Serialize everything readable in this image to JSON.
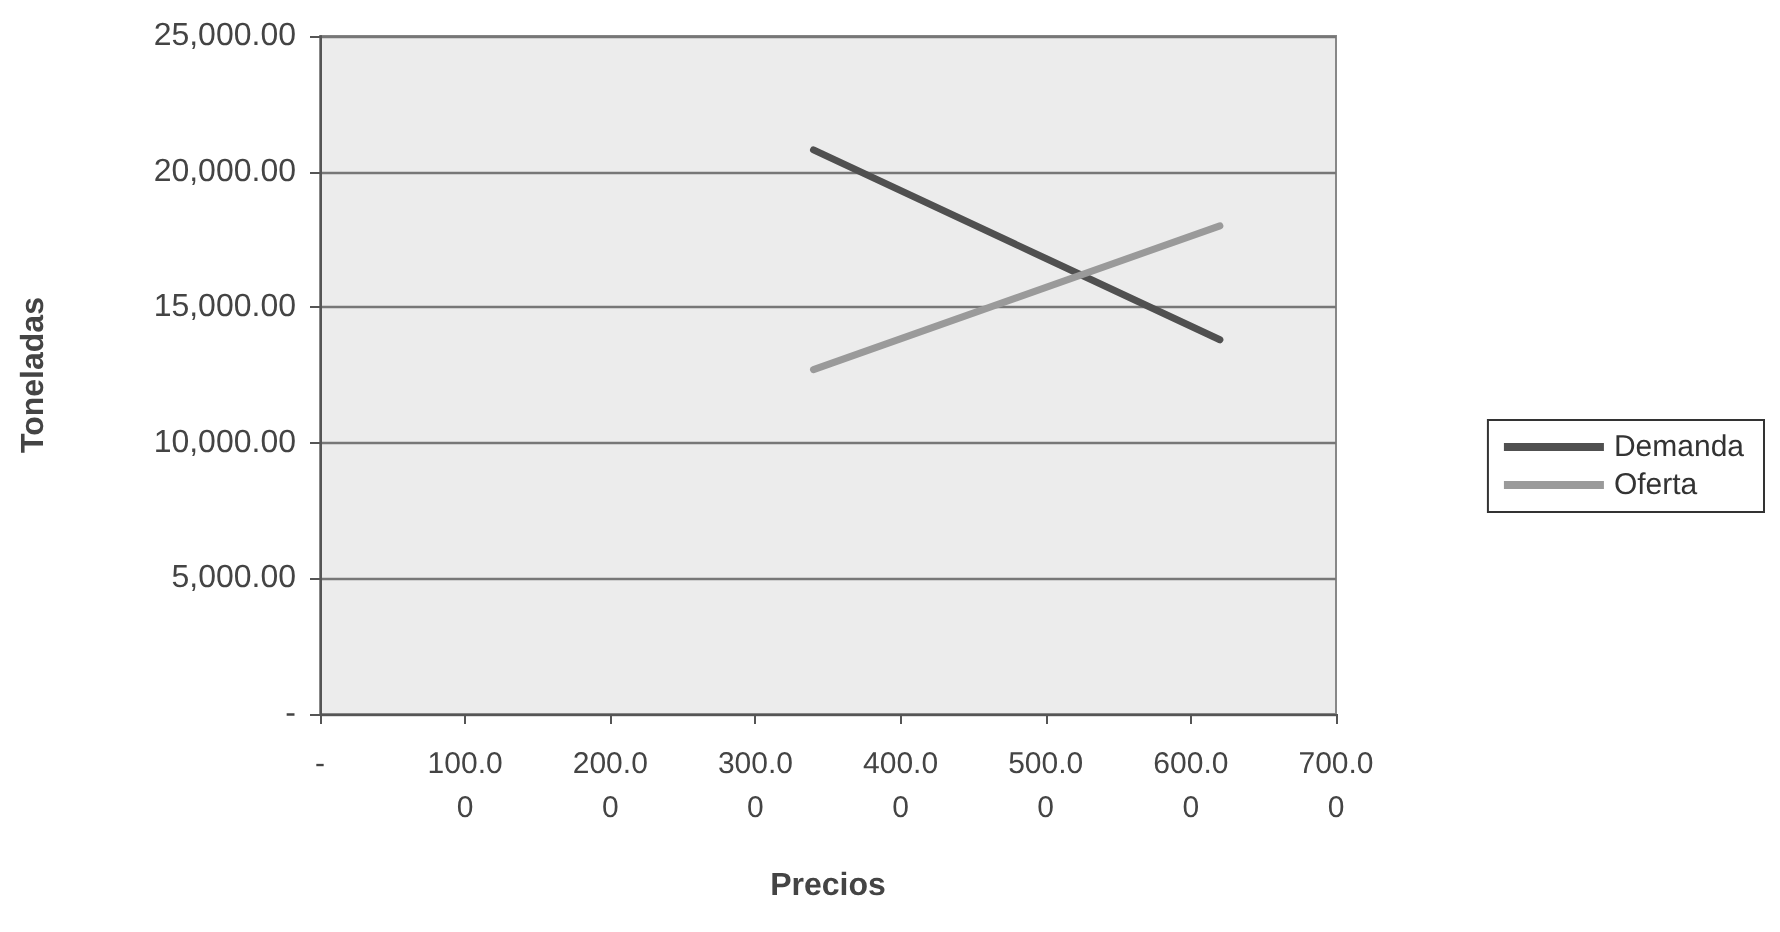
{
  "chart_data": {
    "type": "line",
    "xlabel": "Precios",
    "ylabel": "Toneladas",
    "x": [
      340,
      620
    ],
    "series": [
      {
        "name": "Demanda",
        "color": "#505050",
        "values": [
          20800,
          13800
        ]
      },
      {
        "name": "Oferta",
        "color": "#9a9a9a",
        "values": [
          12700,
          18000
        ]
      }
    ],
    "xlim": [
      0,
      700
    ],
    "xticks": [
      {
        "value": 0,
        "label": "-"
      },
      {
        "value": 100,
        "label": "100.00"
      },
      {
        "value": 200,
        "label": "200.00"
      },
      {
        "value": 300,
        "label": "300.00"
      },
      {
        "value": 400,
        "label": "400.00"
      },
      {
        "value": 500,
        "label": "500.00"
      },
      {
        "value": 600,
        "label": "600.00"
      },
      {
        "value": 700,
        "label": "700.00"
      }
    ],
    "ylim": [
      0,
      25000
    ],
    "yticks": [
      {
        "value": 0,
        "label": "-"
      },
      {
        "value": 5000,
        "label": "5,000.00"
      },
      {
        "value": 10000,
        "label": "10,000.00"
      },
      {
        "value": 15000,
        "label": "15,000.00"
      },
      {
        "value": 20000,
        "label": "20,000.00"
      },
      {
        "value": 25000,
        "label": "25,000.00"
      }
    ],
    "grid": "y",
    "legend": "right",
    "marker": "none",
    "line_style": "solid"
  }
}
